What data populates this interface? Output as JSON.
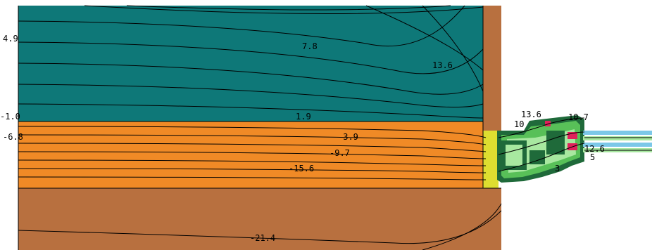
{
  "colors": {
    "insulation": "#0e7878",
    "wood_layer": "#f08a26",
    "concrete": "#b8703f",
    "adhesive": "#dede30",
    "frame_light": "#a8e8a0",
    "frame_mid": "#58c058",
    "frame_dark": "#1f6a3a",
    "seal": "#e0205a",
    "glass": "#7cc8e8",
    "isotherm": "#000000"
  },
  "isotherm_labels": [
    {
      "id": "iso-4-9",
      "text": "4.9"
    },
    {
      "id": "iso-7-8",
      "text": "7.8"
    },
    {
      "id": "iso-13-6-a",
      "text": "13.6"
    },
    {
      "id": "iso-minus-1-0",
      "text": "-1.0"
    },
    {
      "id": "iso-1-9",
      "text": "1.9"
    },
    {
      "id": "iso-minus-6-8",
      "text": "-6.8"
    },
    {
      "id": "iso-minus-3-9",
      "text": "-3.9"
    },
    {
      "id": "iso-minus-9-7",
      "text": "-9.7"
    },
    {
      "id": "iso-minus-15-6",
      "text": "-15.6"
    },
    {
      "id": "iso-minus-21-4",
      "text": "-21.4"
    },
    {
      "id": "iso-13-6-b",
      "text": "13.6"
    },
    {
      "id": "iso-10-7",
      "text": "10.7"
    },
    {
      "id": "iso-10-frag",
      "text": "10"
    },
    {
      "id": "iso-12-6",
      "text": "12.6"
    },
    {
      "id": "iso-5",
      "text": "5"
    },
    {
      "id": "iso-3",
      "text": "3"
    }
  ]
}
